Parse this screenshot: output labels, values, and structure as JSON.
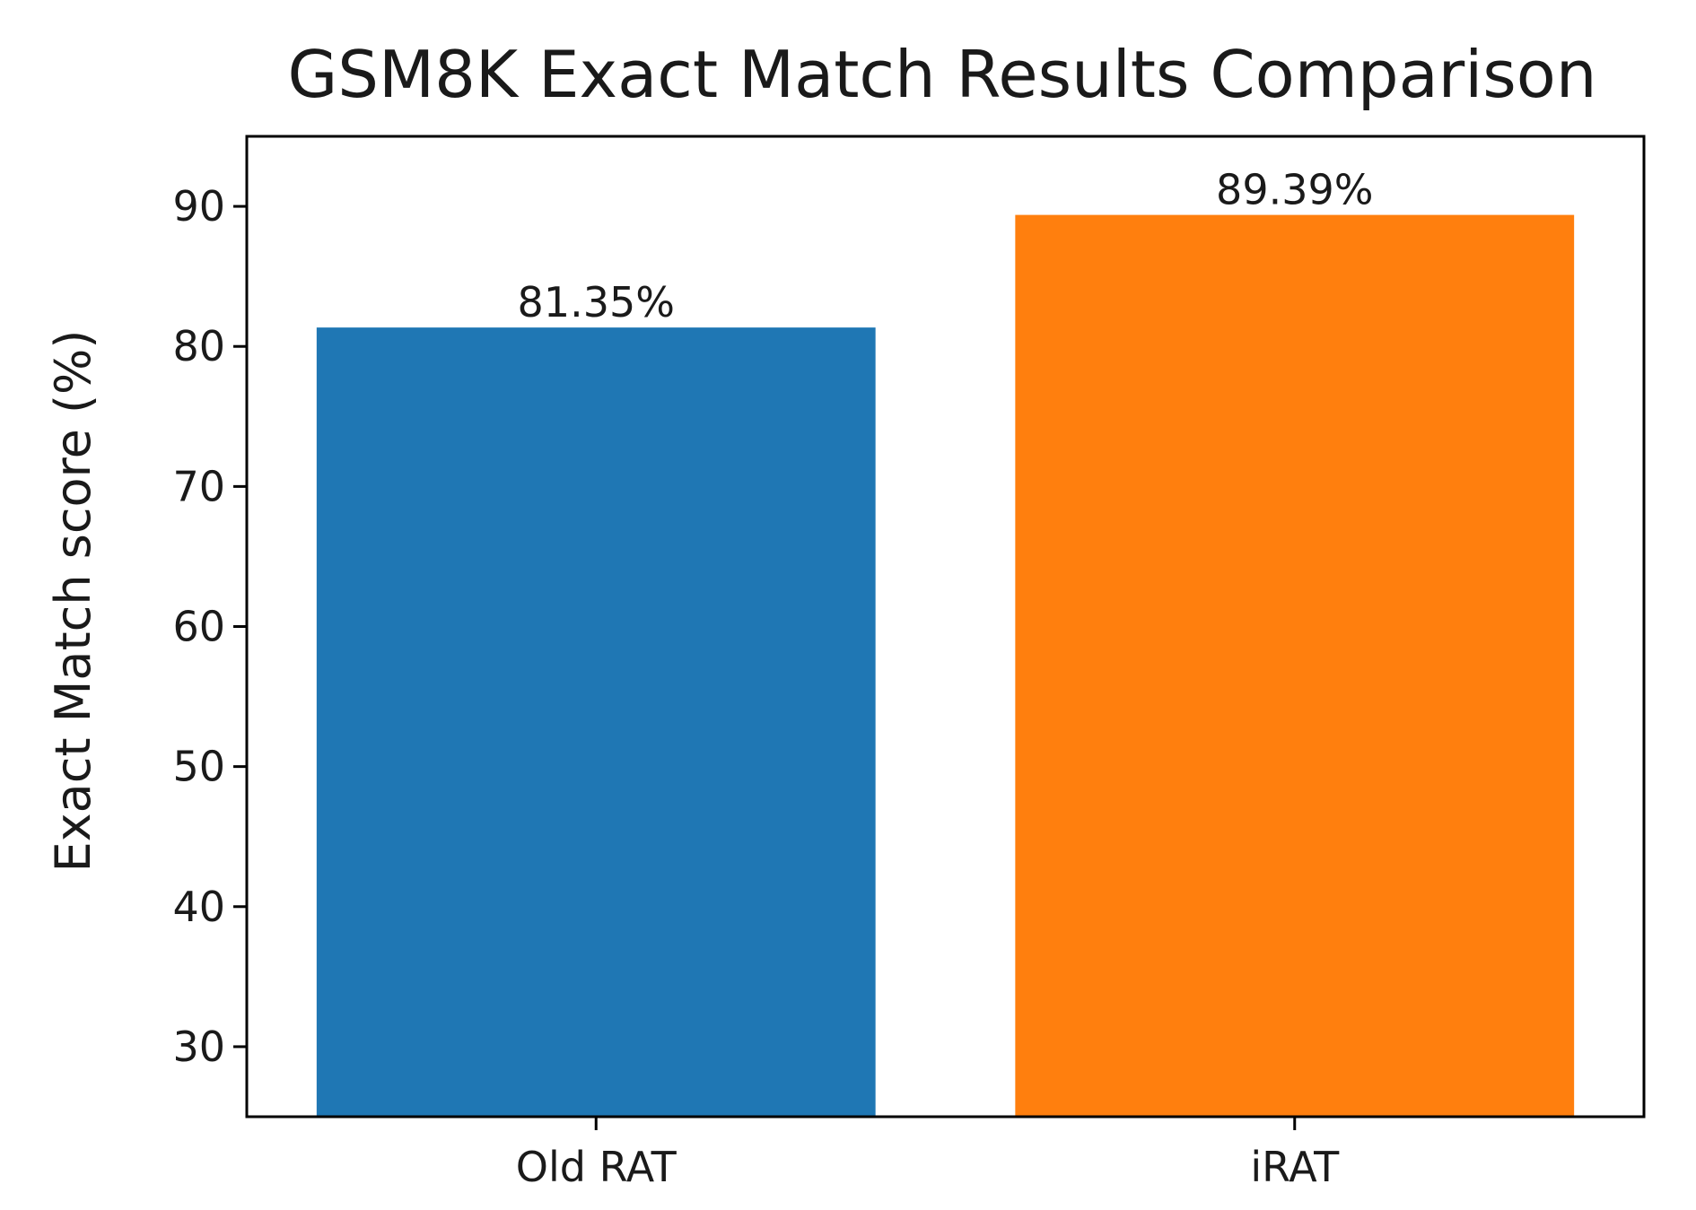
{
  "chart_data": {
    "type": "bar",
    "title": "GSM8K Exact Match Results Comparison",
    "xlabel": "",
    "ylabel": "Exact Match score (%)",
    "categories": [
      "Old RAT",
      "iRAT"
    ],
    "values": [
      81.35,
      89.39
    ],
    "data_labels": [
      "81.35%",
      "89.39%"
    ],
    "colors": [
      "#1f77b4",
      "#ff7f0e"
    ],
    "ylim": [
      25,
      95
    ],
    "yticks": [
      30,
      40,
      50,
      60,
      70,
      80,
      90
    ],
    "grid": false
  }
}
